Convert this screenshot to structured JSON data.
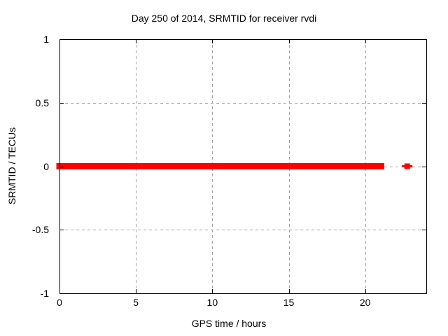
{
  "chart_data": {
    "type": "scatter",
    "title": "Day 250 of 2014, SRMTID for receiver rvdi",
    "xlabel": "GPS time / hours",
    "ylabel": "SRMTID / TECUs",
    "xlim": [
      0,
      24
    ],
    "ylim": [
      -1,
      1
    ],
    "xticks": [
      0,
      5,
      10,
      15,
      20
    ],
    "xtick_labels": [
      "0",
      "5",
      "10",
      "15",
      "20"
    ],
    "yticks": [
      -1,
      -0.5,
      0,
      0.5,
      1
    ],
    "ytick_labels": [
      "-1",
      "-0.5",
      "0",
      "0.5",
      "1"
    ],
    "grid": true,
    "grid_style": "dashed",
    "legend": "none",
    "colors": {
      "marker": "#ff0000",
      "grid": "#a0a0a0",
      "frame": "#000000",
      "background": "#ffffff",
      "text": "#000000"
    },
    "series": [
      {
        "name": "SRMTID",
        "marker": "filled-square",
        "color": "#ff0000",
        "note": "dense run of points at y=0 from 0 to 21.25 h, then one isolated point",
        "dense_segments": [
          {
            "x_start": 0.0,
            "x_end": 21.25,
            "y": 0.0
          }
        ],
        "isolated_points": [
          {
            "x": 22.75,
            "y": 0.0
          }
        ]
      }
    ]
  }
}
